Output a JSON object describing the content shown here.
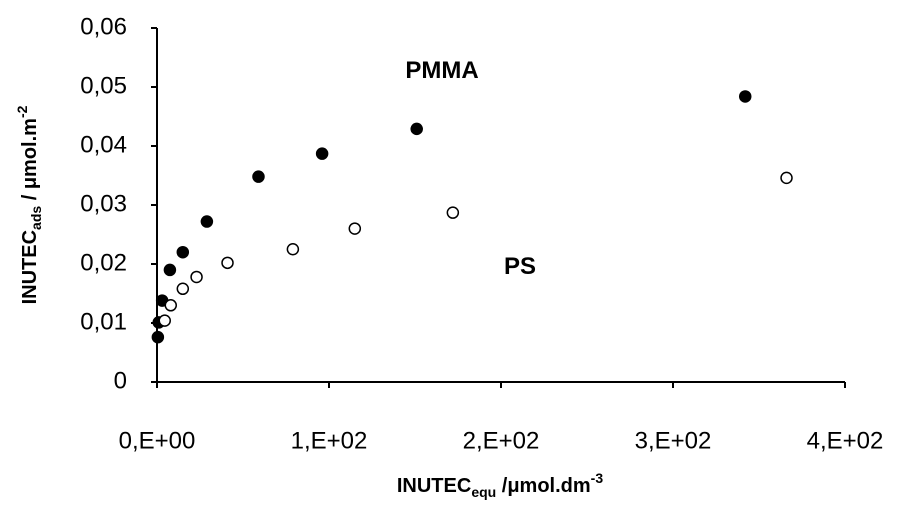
{
  "chart_data": {
    "type": "scatter",
    "x_label": {
      "main": "INUTEC",
      "sub": "equ",
      "unit": " /μmol.dm",
      "sup": "-3"
    },
    "y_label": {
      "main": "INUTEC",
      "sub": "ads",
      "unit": " / μmol.m",
      "sup": "-2"
    },
    "xlim": [
      0,
      400
    ],
    "xticks": [
      {
        "value": 0,
        "label": "0,E+00"
      },
      {
        "value": 100,
        "label": "1,E+02"
      },
      {
        "value": 200,
        "label": "2,E+02"
      },
      {
        "value": 300,
        "label": "3,E+02"
      },
      {
        "value": 400,
        "label": "4,E+02"
      }
    ],
    "ylim": [
      0,
      0.06
    ],
    "yticks": [
      0,
      {
        "value": 0.01,
        "label": "0,01"
      },
      {
        "value": 0.02,
        "label": "0,02"
      },
      {
        "value": 0.03,
        "label": "0,03"
      },
      {
        "value": 0.04,
        "label": "0,04"
      },
      {
        "value": 0.05,
        "label": "0,05"
      },
      {
        "value": 0.06,
        "label": "0,06"
      }
    ],
    "series": [
      {
        "name": "PMMA",
        "color": "#000000",
        "fill": "#000000",
        "x": [
          0.5,
          1,
          3,
          7.5,
          15,
          29,
          59,
          96,
          151,
          342
        ],
        "values": [
          0.0076,
          0.0101,
          0.0138,
          0.019,
          0.022,
          0.0272,
          0.0348,
          0.0387,
          0.0429,
          0.0484
        ]
      },
      {
        "name": "PS",
        "color": "#000000",
        "fill": "#ffffff",
        "x": [
          4.5,
          8,
          15,
          23,
          41,
          79,
          115,
          172,
          366
        ],
        "values": [
          0.0104,
          0.013,
          0.0158,
          0.0178,
          0.0202,
          0.0225,
          0.026,
          0.0287,
          0.0346
        ]
      }
    ]
  }
}
